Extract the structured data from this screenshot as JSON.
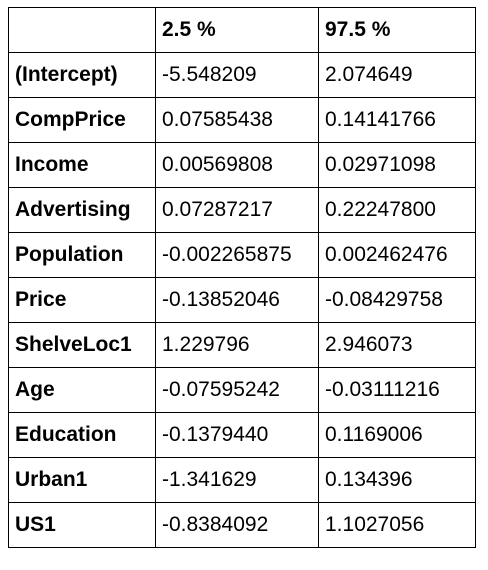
{
  "table": {
    "columns": [
      "",
      "2.5 %",
      "97.5 %"
    ],
    "rows": [
      {
        "name": "(Intercept)",
        "low": "-5.548209",
        "high": "2.074649"
      },
      {
        "name": "CompPrice",
        "low": "0.07585438",
        "high": "0.14141766"
      },
      {
        "name": "Income",
        "low": "0.00569808",
        "high": "0.02971098"
      },
      {
        "name": "Advertising",
        "low": "0.07287217",
        "high": "0.22247800"
      },
      {
        "name": "Population",
        "low": "-0.002265875",
        "high": "0.002462476"
      },
      {
        "name": "Price",
        "low": "-0.13852046",
        "high": "-0.08429758"
      },
      {
        "name": "ShelveLoc1",
        "low": "1.229796",
        "high": "2.946073"
      },
      {
        "name": "Age",
        "low": "-0.07595242",
        "high": "-0.03111216"
      },
      {
        "name": "Education",
        "low": "-0.1379440",
        "high": "0.1169006"
      },
      {
        "name": "Urban1",
        "low": "-1.341629",
        "high": "0.134396"
      },
      {
        "name": "US1",
        "low": "-0.8384092",
        "high": "1.1027056"
      }
    ]
  }
}
